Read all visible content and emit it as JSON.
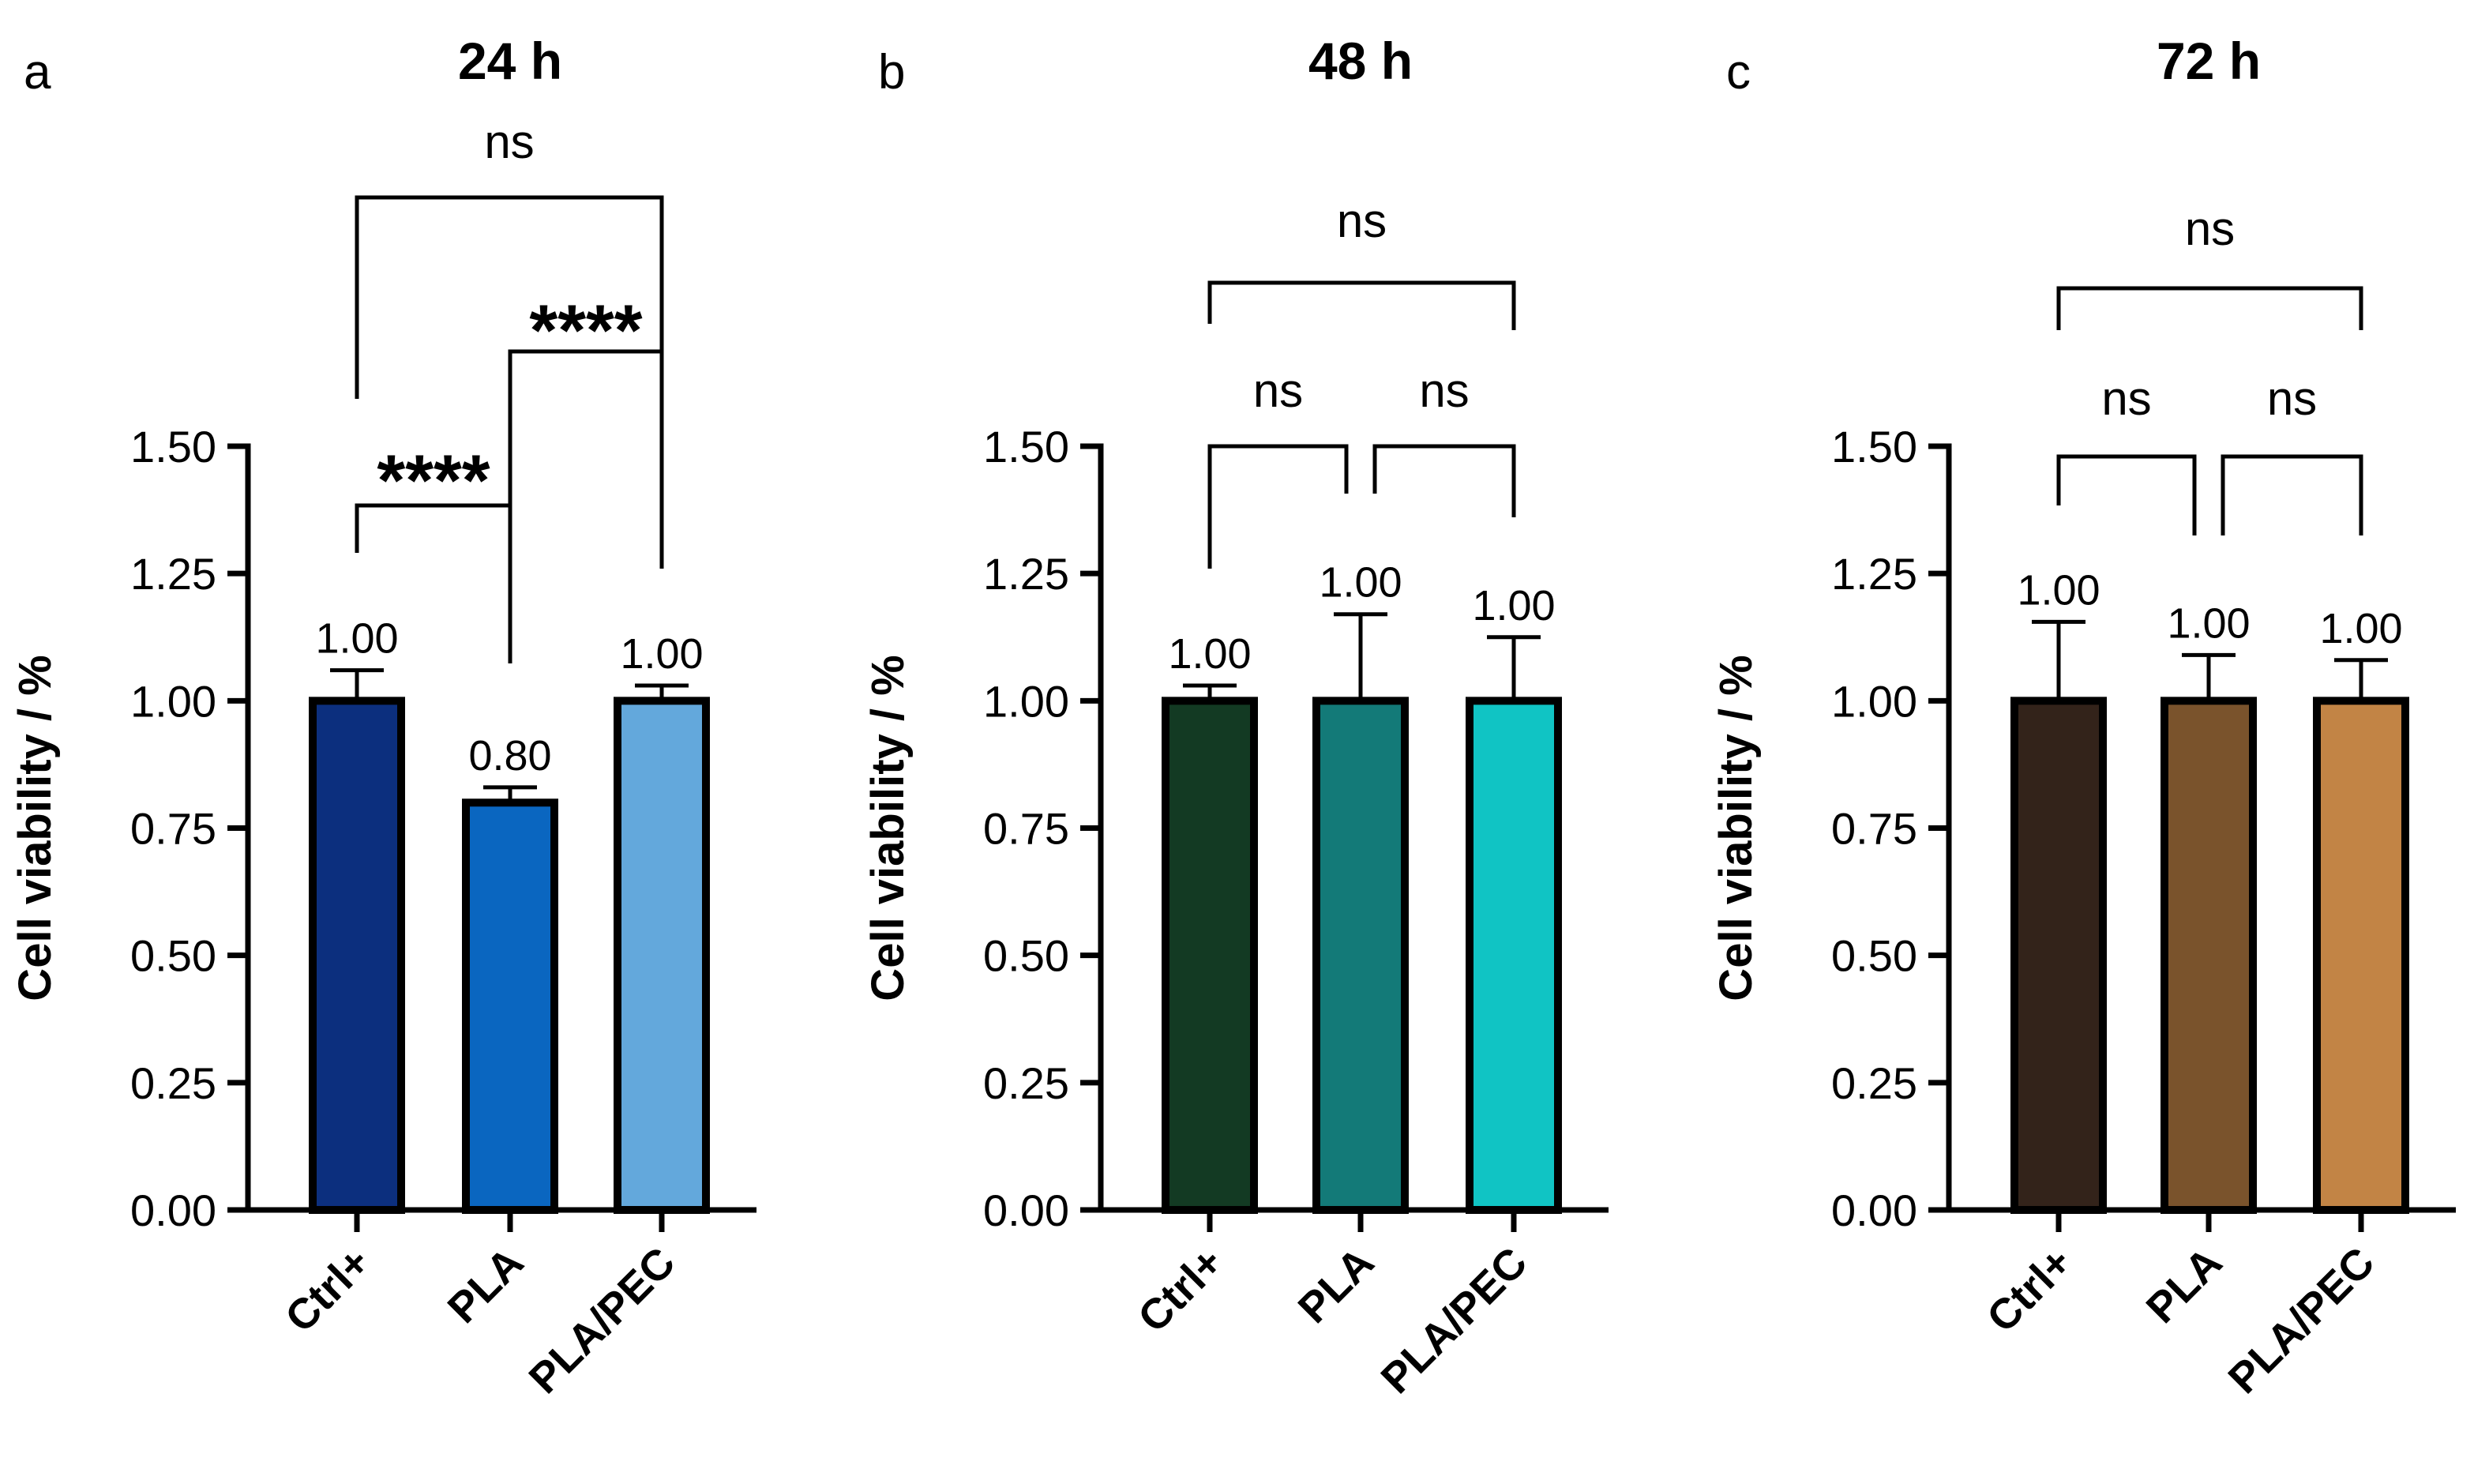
{
  "chart_data": [
    {
      "panel": "a",
      "title": "24 h",
      "type": "bar",
      "ylabel": "Cell viability / %",
      "xlabel": "",
      "categories": [
        "Ctrl+",
        "PLA",
        "PLA/PEC"
      ],
      "values": [
        1.0,
        0.8,
        1.0
      ],
      "errors": [
        0.06,
        0.03,
        0.03
      ],
      "value_labels": [
        "1.00",
        "0.80",
        "1.00"
      ],
      "colors": [
        "#0c2f7e",
        "#0a66c0",
        "#63a8dc"
      ],
      "ylim": [
        0,
        1.5
      ],
      "yticks": [
        "0.00",
        "0.25",
        "0.50",
        "0.75",
        "1.00",
        "1.25",
        "1.50"
      ],
      "comparisons": [
        {
          "from": 0,
          "to": 1,
          "label": "****"
        },
        {
          "from": 1,
          "to": 2,
          "label": "****"
        },
        {
          "from": 0,
          "to": 2,
          "label": "ns"
        }
      ]
    },
    {
      "panel": "b",
      "title": "48 h",
      "type": "bar",
      "ylabel": "Cell viability / %",
      "xlabel": "",
      "categories": [
        "Ctrl+",
        "PLA",
        "PLA/PEC"
      ],
      "values": [
        1.0,
        1.0,
        1.0
      ],
      "errors": [
        0.03,
        0.17,
        0.125
      ],
      "value_labels": [
        "1.00",
        "1.00",
        "1.00"
      ],
      "colors": [
        "#133a23",
        "#137a78",
        "#10c4c4"
      ],
      "ylim": [
        0,
        1.5
      ],
      "yticks": [
        "0.00",
        "0.25",
        "0.50",
        "0.75",
        "1.00",
        "1.25",
        "1.50"
      ],
      "comparisons": [
        {
          "from": 0,
          "to": 1,
          "label": "ns"
        },
        {
          "from": 1,
          "to": 2,
          "label": "ns"
        },
        {
          "from": 0,
          "to": 2,
          "label": "ns"
        }
      ]
    },
    {
      "panel": "c",
      "title": "72 h",
      "type": "bar",
      "ylabel": "Cell viability / %",
      "xlabel": "",
      "categories": [
        "Ctrl+",
        "PLA",
        "PLA/PEC"
      ],
      "values": [
        1.0,
        1.0,
        1.0
      ],
      "errors": [
        0.155,
        0.09,
        0.08
      ],
      "value_labels": [
        "1.00",
        "1.00",
        "1.00"
      ],
      "colors": [
        "#33231a",
        "#7a532c",
        "#c28445"
      ],
      "ylim": [
        0,
        1.5
      ],
      "yticks": [
        "0.00",
        "0.25",
        "0.50",
        "0.75",
        "1.00",
        "1.25",
        "1.50"
      ],
      "comparisons": [
        {
          "from": 0,
          "to": 1,
          "label": "ns"
        },
        {
          "from": 1,
          "to": 2,
          "label": "ns"
        },
        {
          "from": 0,
          "to": 2,
          "label": "ns"
        }
      ]
    }
  ]
}
